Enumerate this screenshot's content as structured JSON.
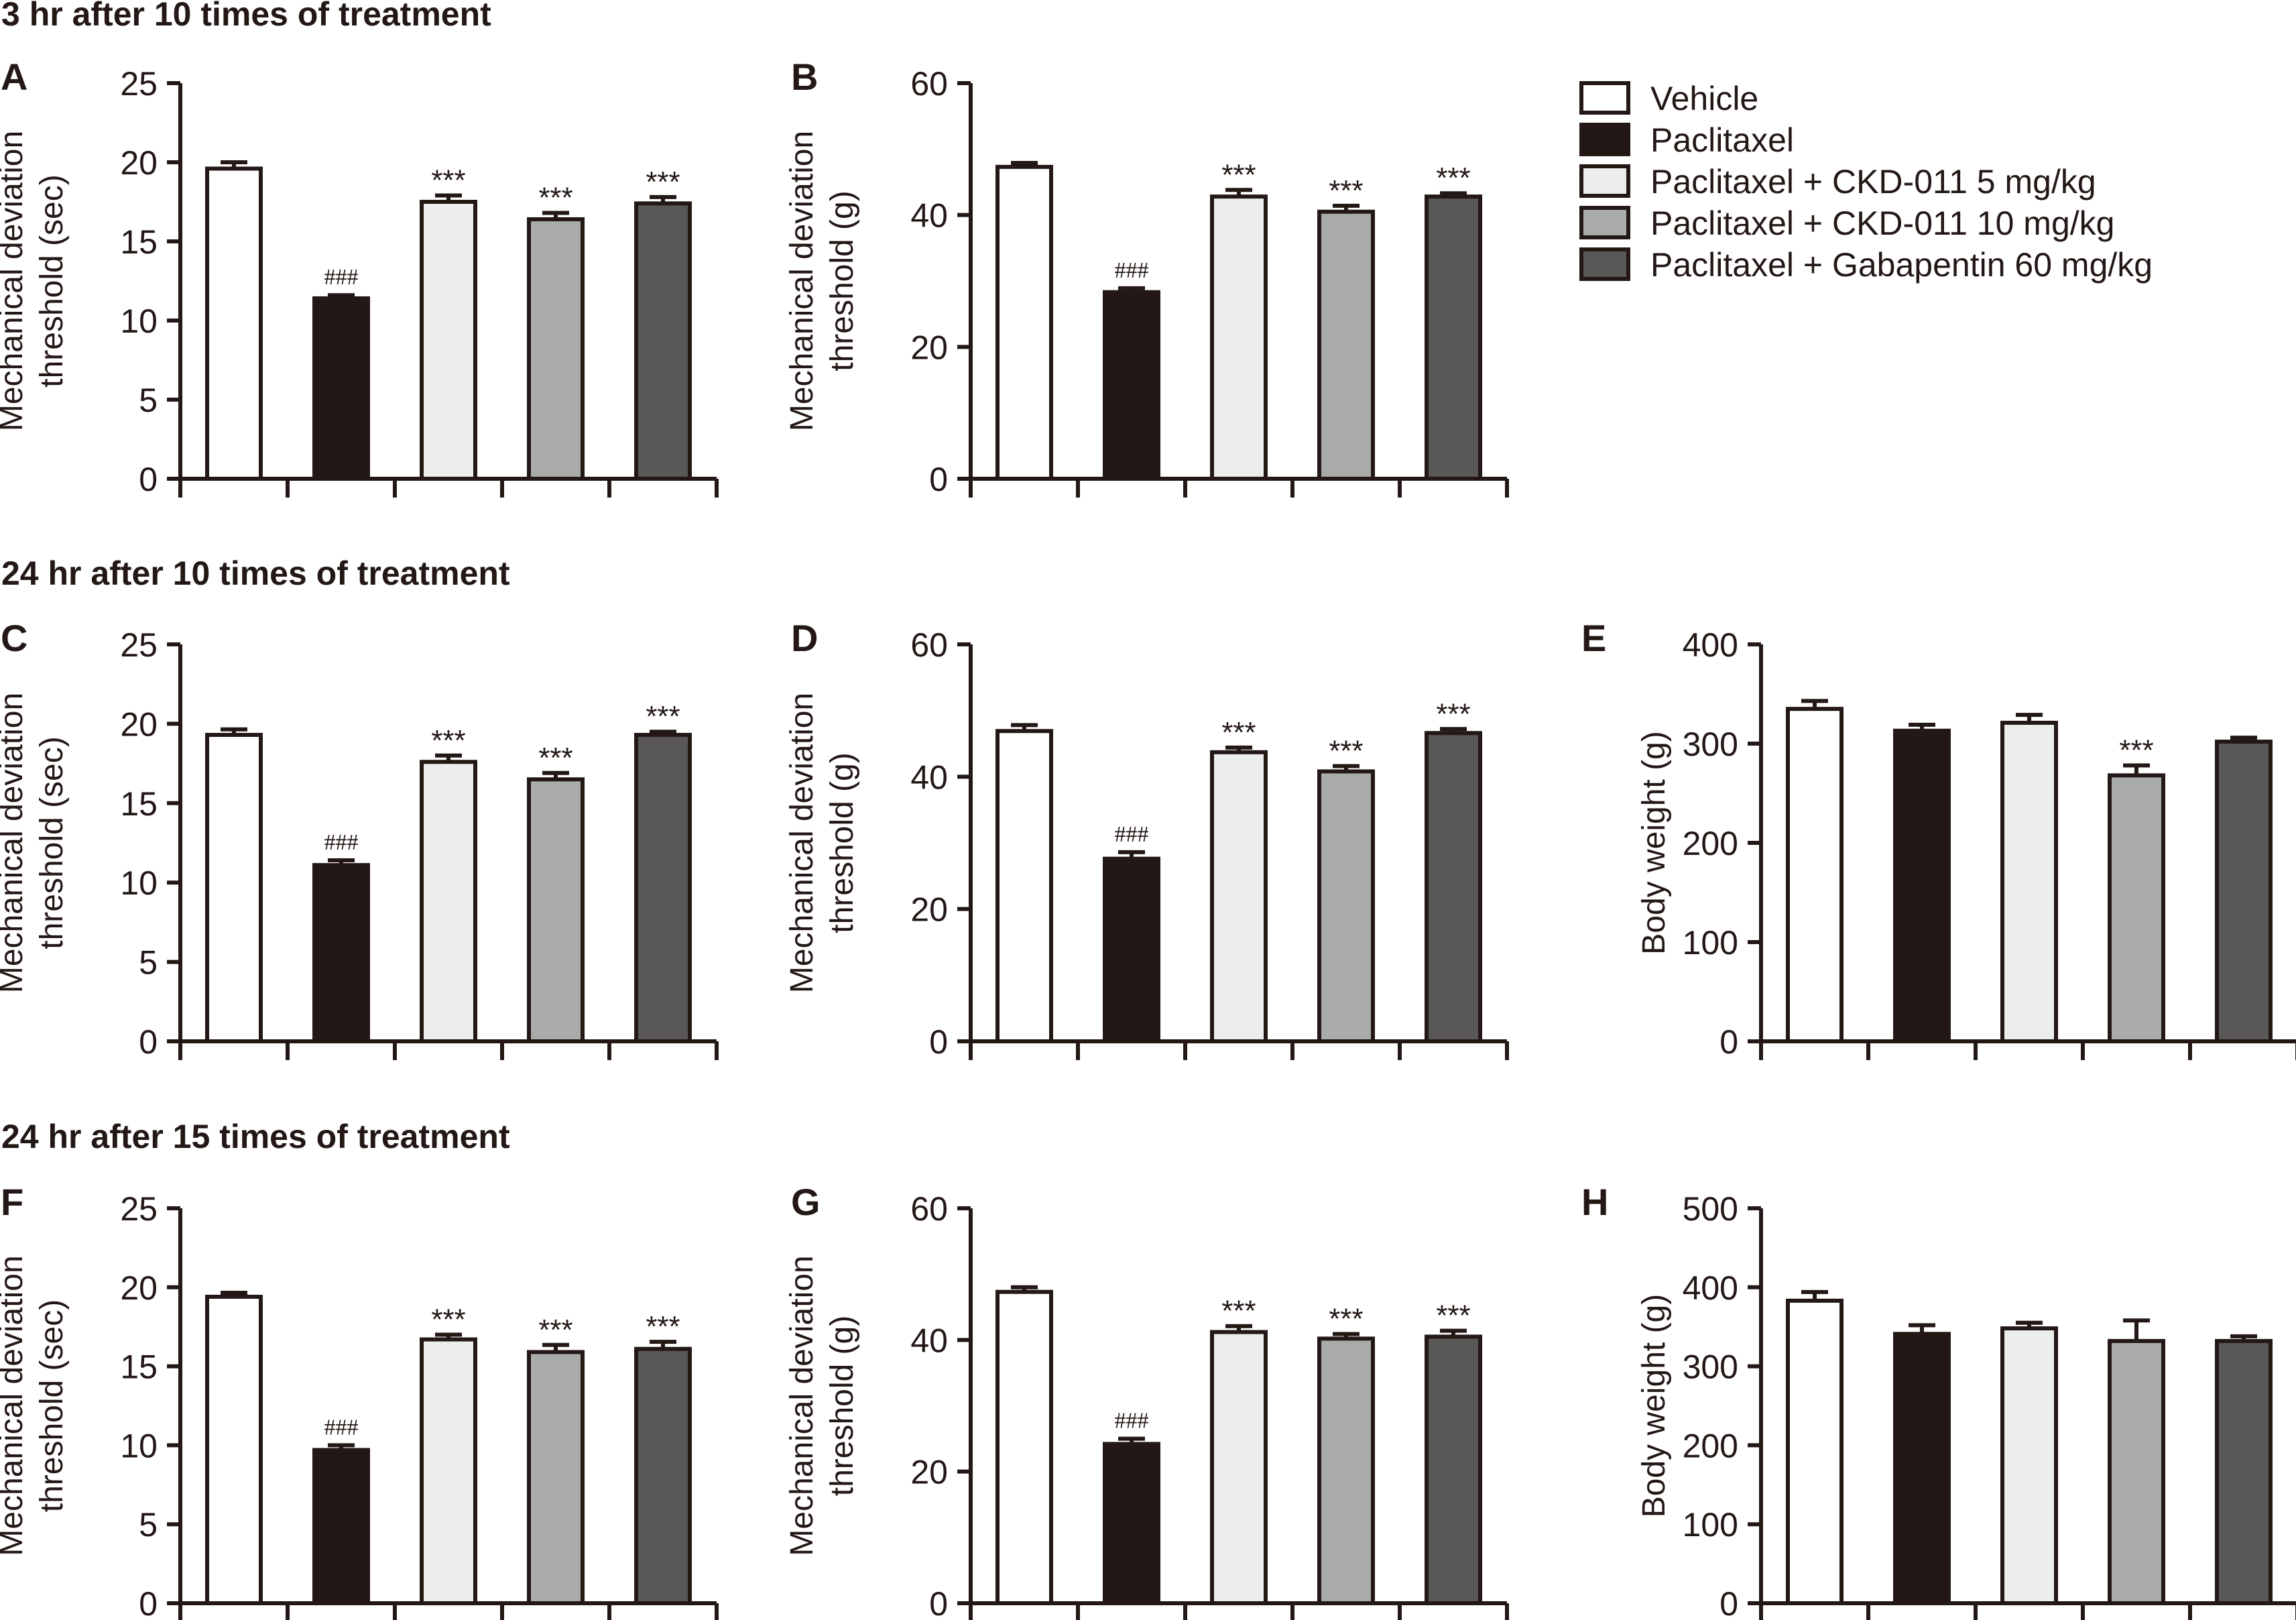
{
  "groups": [
    "Vehicle",
    "Paclitaxel",
    "Paclitaxel + CKD-011 5 mg/kg",
    "Paclitaxel + CKD-011 10 mg/kg",
    "Paclitaxel + Gabapentin 60 mg/kg"
  ],
  "group_colors": [
    "#ffffff",
    "#231815",
    "#eceeed",
    "#a9abaa",
    "#595757"
  ],
  "outline_color": "#231815",
  "row_titles": [
    "3 hr after 10 times of treatment",
    "24 hr after 10 times of treatment",
    "24 hr after 15 times of treatment"
  ],
  "chart_data": [
    {
      "panel": "A",
      "type": "bar",
      "row": 0,
      "col": 0,
      "title": "",
      "ylabel": [
        "Mechanical deviation",
        "threshold (sec)"
      ],
      "xlabel": "",
      "ylim": [
        0,
        25
      ],
      "yticks": [
        0,
        5,
        10,
        15,
        20,
        25
      ],
      "categories": [
        "Vehicle",
        "Paclitaxel",
        "Paclitaxel + CKD-011 5 mg/kg",
        "Paclitaxel + CKD-011 10 mg/kg",
        "Paclitaxel + Gabapentin 60 mg/kg"
      ],
      "values": [
        19.6,
        11.4,
        17.5,
        16.4,
        17.4
      ],
      "errors": [
        0.4,
        0.2,
        0.4,
        0.4,
        0.4
      ],
      "annotations": [
        "",
        "###",
        "***",
        "***",
        "***"
      ]
    },
    {
      "panel": "B",
      "type": "bar",
      "row": 0,
      "col": 1,
      "title": "",
      "ylabel": [
        "Mechanical deviation",
        "threshold (g)"
      ],
      "xlabel": "",
      "ylim": [
        0,
        60
      ],
      "yticks": [
        0,
        20,
        40,
        60
      ],
      "categories": [
        "Vehicle",
        "Paclitaxel",
        "Paclitaxel + CKD-011 5 mg/kg",
        "Paclitaxel + CKD-011 10 mg/kg",
        "Paclitaxel + Gabapentin 60 mg/kg"
      ],
      "values": [
        47.3,
        28.3,
        42.8,
        40.5,
        42.8
      ],
      "errors": [
        0.6,
        0.6,
        1.0,
        0.9,
        0.5
      ],
      "annotations": [
        "",
        "###",
        "***",
        "***",
        "***"
      ]
    },
    {
      "panel": "C",
      "type": "bar",
      "row": 1,
      "col": 0,
      "title": "",
      "ylabel": [
        "Mechanical deviation",
        "threshold (sec)"
      ],
      "xlabel": "",
      "ylim": [
        0,
        25
      ],
      "yticks": [
        0,
        5,
        10,
        15,
        20,
        25
      ],
      "categories": [
        "Vehicle",
        "Paclitaxel",
        "Paclitaxel + CKD-011 5 mg/kg",
        "Paclitaxel + CKD-011 10 mg/kg",
        "Paclitaxel + Gabapentin 60 mg/kg"
      ],
      "values": [
        19.3,
        11.1,
        17.6,
        16.5,
        19.3
      ],
      "errors": [
        0.35,
        0.3,
        0.4,
        0.4,
        0.2
      ],
      "annotations": [
        "",
        "###",
        "***",
        "***",
        "***"
      ]
    },
    {
      "panel": "D",
      "type": "bar",
      "row": 1,
      "col": 1,
      "title": "",
      "ylabel": [
        "Mechanical deviation",
        "threshold (g)"
      ],
      "xlabel": "",
      "ylim": [
        0,
        60
      ],
      "yticks": [
        0,
        20,
        40,
        60
      ],
      "categories": [
        "Vehicle",
        "Paclitaxel",
        "Paclitaxel + CKD-011 5 mg/kg",
        "Paclitaxel + CKD-011 10 mg/kg",
        "Paclitaxel + Gabapentin 60 mg/kg"
      ],
      "values": [
        46.9,
        27.6,
        43.7,
        40.8,
        46.6
      ],
      "errors": [
        0.9,
        1.0,
        0.7,
        0.8,
        0.6
      ],
      "annotations": [
        "",
        "###",
        "***",
        "***",
        "***"
      ]
    },
    {
      "panel": "E",
      "type": "bar",
      "row": 1,
      "col": 2,
      "title": "",
      "ylabel": [
        "Body weight (g)"
      ],
      "xlabel": "",
      "ylim": [
        0,
        400
      ],
      "yticks": [
        0,
        100,
        200,
        300,
        400
      ],
      "categories": [
        "Vehicle",
        "Paclitaxel",
        "Paclitaxel + CKD-011 5 mg/kg",
        "Paclitaxel + CKD-011 10 mg/kg",
        "Paclitaxel + Gabapentin 60 mg/kg"
      ],
      "values": [
        335,
        313,
        321,
        268,
        302
      ],
      "errors": [
        8,
        6,
        8,
        10,
        4
      ],
      "annotations": [
        "",
        "",
        "",
        "***",
        ""
      ]
    },
    {
      "panel": "F",
      "type": "bar",
      "row": 2,
      "col": 0,
      "title": "",
      "ylabel": [
        "Mechanical deviation",
        "threshold (sec)"
      ],
      "xlabel": "",
      "ylim": [
        0,
        25
      ],
      "yticks": [
        0,
        5,
        10,
        15,
        20,
        25
      ],
      "categories": [
        "Vehicle",
        "Paclitaxel",
        "Paclitaxel + CKD-011 5 mg/kg",
        "Paclitaxel + CKD-011 10 mg/kg",
        "Paclitaxel + Gabapentin 60 mg/kg"
      ],
      "values": [
        19.4,
        9.7,
        16.7,
        15.9,
        16.1
      ],
      "errors": [
        0.25,
        0.3,
        0.3,
        0.45,
        0.45
      ],
      "annotations": [
        "",
        "###",
        "***",
        "***",
        "***"
      ]
    },
    {
      "panel": "G",
      "type": "bar",
      "row": 2,
      "col": 1,
      "title": "",
      "ylabel": [
        "Mechanical deviation",
        "threshold (g)"
      ],
      "xlabel": "",
      "ylim": [
        0,
        60
      ],
      "yticks": [
        0,
        20,
        40,
        60
      ],
      "categories": [
        "Vehicle",
        "Paclitaxel",
        "Paclitaxel + CKD-011 5 mg/kg",
        "Paclitaxel + CKD-011 10 mg/kg",
        "Paclitaxel + Gabapentin 60 mg/kg"
      ],
      "values": [
        47.3,
        24.2,
        41.2,
        40.2,
        40.5
      ],
      "errors": [
        0.7,
        0.8,
        0.9,
        0.7,
        0.9
      ],
      "annotations": [
        "",
        "###",
        "***",
        "***",
        "***"
      ]
    },
    {
      "panel": "H",
      "type": "bar",
      "row": 2,
      "col": 2,
      "title": "",
      "ylabel": [
        "Body weight (g)"
      ],
      "xlabel": "",
      "ylim": [
        0,
        500
      ],
      "yticks": [
        0,
        100,
        200,
        300,
        400,
        500
      ],
      "categories": [
        "Vehicle",
        "Paclitaxel",
        "Paclitaxel + CKD-011 5 mg/kg",
        "Paclitaxel + CKD-011 10 mg/kg",
        "Paclitaxel + Gabapentin 60 mg/kg"
      ],
      "values": [
        383,
        341,
        348,
        332,
        332
      ],
      "errors": [
        11,
        11,
        7,
        26,
        6
      ],
      "annotations": [
        "",
        "",
        "",
        "",
        ""
      ]
    }
  ],
  "legend": {
    "placement": "top-right",
    "items": [
      {
        "label": "Vehicle",
        "color": "#ffffff"
      },
      {
        "label": "Paclitaxel",
        "color": "#231815"
      },
      {
        "label": "Paclitaxel + CKD-011 5 mg/kg",
        "color": "#eceeed"
      },
      {
        "label": "Paclitaxel + CKD-011 10 mg/kg",
        "color": "#a9abaa"
      },
      {
        "label": "Paclitaxel + Gabapentin 60 mg/kg",
        "color": "#595757"
      }
    ]
  }
}
